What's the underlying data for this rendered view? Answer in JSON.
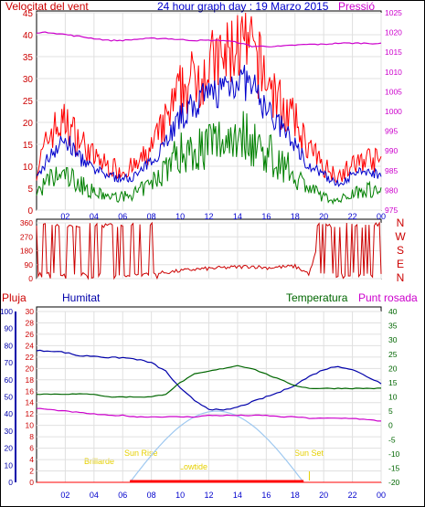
{
  "header": {
    "left_label": "Velocitat del vent",
    "title": "24 hour graph day : 19 Marzo 2015",
    "right_label": "Pressió"
  },
  "direction_labels": [
    "N",
    "W",
    "S",
    "E",
    "N"
  ],
  "lower_labels": {
    "rain": "Pluja",
    "humidity": "Humitat",
    "temperature": "Temperatura",
    "dewpoint": "Punt rosada"
  },
  "sun_labels": {
    "first_light": "Brillarde",
    "sunrise": "Sun Rise",
    "noon": "Lowtide",
    "sunset": "Sun Set"
  },
  "colors": {
    "wind_gust": "#ff0000",
    "wind_avg": "#0000cc",
    "wind_low": "#008000",
    "pressure": "#cc00cc",
    "direction": "#cc0000",
    "humidity": "#0000aa",
    "temperature": "#006600",
    "dewpoint": "#cc00cc",
    "rain": "#ff0000",
    "solar": "#9ec8f0",
    "sun_text": "#e6d000"
  },
  "chart_data": [
    {
      "type": "line",
      "title": "24 hour graph day : 19 Marzo 2015",
      "x_ticks": [
        "02",
        "04",
        "06",
        "08",
        "10",
        "12",
        "14",
        "16",
        "18",
        "20",
        "22",
        "00"
      ],
      "y_left": {
        "label": "Velocitat del vent",
        "ticks": [
          0,
          5,
          10,
          15,
          20,
          25,
          30,
          35,
          40,
          45
        ],
        "lim": [
          0,
          45
        ]
      },
      "y_right": {
        "label": "Pressió",
        "ticks": [
          975,
          980,
          985,
          990,
          995,
          1000,
          1005,
          1010,
          1015,
          1020,
          1025
        ],
        "lim": [
          975,
          1025
        ]
      },
      "hours": [
        0,
        1,
        2,
        3,
        4,
        5,
        6,
        7,
        8,
        9,
        10,
        11,
        12,
        13,
        14,
        15,
        16,
        17,
        18,
        19,
        20,
        21,
        22,
        23,
        24
      ],
      "series": [
        {
          "name": "gust",
          "values": [
            9,
            18,
            20,
            16,
            12,
            10,
            9,
            10,
            14,
            20,
            27,
            30,
            33,
            34,
            38,
            36,
            30,
            24,
            20,
            14,
            10,
            8,
            10,
            12,
            11
          ]
        },
        {
          "name": "average",
          "values": [
            7,
            13,
            16,
            12,
            9,
            8,
            7,
            8,
            11,
            16,
            21,
            24,
            26,
            28,
            30,
            28,
            23,
            19,
            15,
            10,
            8,
            6,
            8,
            9,
            8
          ]
        },
        {
          "name": "minimum",
          "values": [
            4,
            7,
            8,
            6,
            4,
            3,
            3,
            4,
            6,
            10,
            13,
            14,
            15,
            16,
            18,
            16,
            13,
            11,
            8,
            5,
            3,
            2,
            4,
            5,
            4
          ]
        },
        {
          "name": "pressure",
          "values": [
            1020,
            1020,
            1019.5,
            1019,
            1018.5,
            1018,
            1018,
            1018.3,
            1018.5,
            1018.5,
            1018.2,
            1018,
            1018,
            1018,
            1017.5,
            1016.5,
            1016.5,
            1016.5,
            1016.8,
            1017,
            1017,
            1017.3,
            1017.3,
            1017.3,
            1017.2
          ]
        }
      ]
    },
    {
      "type": "line",
      "x_ticks": [
        "02",
        "04",
        "06",
        "08",
        "10",
        "12",
        "14",
        "16",
        "18",
        "20",
        "22",
        "00"
      ],
      "y_left": {
        "ticks": [
          0,
          90,
          180,
          270,
          360
        ],
        "lim": [
          0,
          360
        ]
      },
      "y_right": {
        "ticks": [
          "N",
          "W",
          "S",
          "E",
          "N"
        ]
      },
      "hours": [
        0,
        1,
        2,
        3,
        4,
        5,
        6,
        7,
        8,
        9,
        10,
        11,
        12,
        13,
        14,
        15,
        16,
        17,
        18,
        19,
        20,
        21,
        22,
        23,
        24
      ],
      "series": [
        {
          "name": "direction",
          "values": [
            20,
            340,
            360,
            350,
            300,
            340,
            350,
            360,
            30,
            40,
            50,
            60,
            65,
            70,
            75,
            80,
            70,
            75,
            80,
            30,
            340,
            350,
            360,
            80,
            90
          ]
        }
      ]
    },
    {
      "type": "line",
      "x_ticks": [
        "02",
        "04",
        "06",
        "08",
        "10",
        "12",
        "14",
        "16",
        "18",
        "20",
        "22",
        "00"
      ],
      "y_humidity": {
        "label": "Humitat",
        "ticks": [
          0,
          10,
          20,
          30,
          40,
          50,
          60,
          70,
          80,
          90,
          100
        ],
        "lim": [
          0,
          100
        ]
      },
      "y_rain": {
        "label": "Pluja",
        "ticks": [
          0,
          2,
          4,
          6,
          8,
          10,
          12,
          14,
          16,
          18,
          20,
          22,
          24,
          26,
          28,
          30
        ],
        "lim": [
          0,
          30
        ]
      },
      "y_temperature": {
        "label": "Temperatura",
        "ticks": [
          -20,
          -15,
          -10,
          -5,
          0,
          5,
          10,
          15,
          20,
          25,
          30,
          35,
          40
        ],
        "lim": [
          -20,
          40
        ]
      },
      "hours": [
        0,
        1,
        2,
        3,
        4,
        5,
        6,
        7,
        8,
        9,
        10,
        11,
        12,
        13,
        14,
        15,
        16,
        17,
        18,
        19,
        20,
        21,
        22,
        23,
        24
      ],
      "series": [
        {
          "name": "humidity",
          "values": [
            77,
            77,
            76,
            74,
            74,
            73,
            73,
            72,
            70,
            65,
            55,
            48,
            43,
            42,
            44,
            47,
            50,
            53,
            57,
            62,
            66,
            68,
            66,
            62,
            58
          ]
        },
        {
          "name": "temperature",
          "values": [
            11,
            11,
            11,
            11,
            11,
            10,
            10,
            10,
            10,
            11,
            15,
            18,
            19,
            20,
            21,
            20,
            18,
            16,
            14,
            13,
            13,
            13,
            13,
            13,
            13
          ]
        },
        {
          "name": "dewpoint",
          "values": [
            6,
            5.5,
            5,
            4.5,
            4,
            3.5,
            3.5,
            3,
            3,
            3,
            3,
            3,
            3.5,
            3.5,
            3.5,
            3.5,
            3.5,
            3,
            3,
            2.5,
            2.5,
            2.5,
            2.5,
            2,
            1.5
          ]
        },
        {
          "name": "rain",
          "values": [
            0,
            0,
            0,
            0,
            0,
            0,
            0,
            0,
            0,
            0,
            0,
            0,
            0,
            0,
            0,
            0,
            0,
            0,
            0,
            0,
            0,
            0,
            0,
            0,
            0
          ]
        }
      ],
      "sun": {
        "sunrise_hour": 6.5,
        "sunset_hour": 18.6,
        "peak_temperature_scale": 5
      }
    }
  ]
}
